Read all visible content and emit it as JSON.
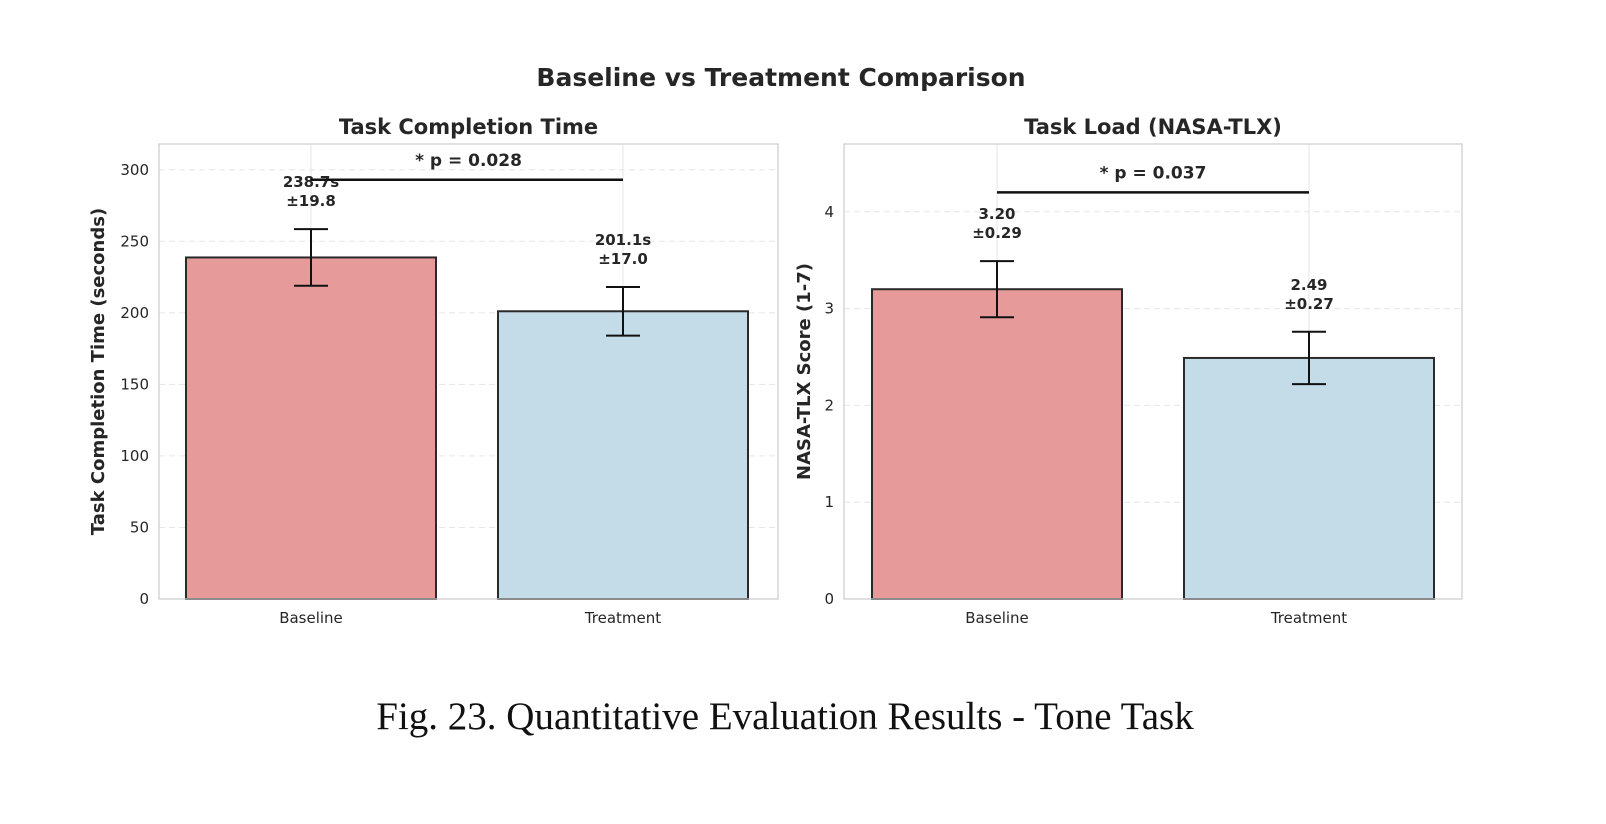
{
  "figure": {
    "suptitle": "Baseline vs Treatment Comparison",
    "caption": "Fig. 23.  Quantitative Evaluation Results - Tone Task"
  },
  "colors": {
    "baseline": "#e69a9a",
    "treatment": "#c3dce8",
    "edge": "#2a2a2a",
    "grid": "#e6e6e6",
    "axis": "#cccccc",
    "text": "#262626"
  },
  "chart_data": [
    {
      "type": "bar",
      "title": "Task Completion Time",
      "xlabel": "",
      "ylabel": "Task Completion Time (seconds)",
      "ylim": [
        0,
        318
      ],
      "yticks": [
        0,
        50,
        100,
        150,
        200,
        250,
        300
      ],
      "categories": [
        "Baseline",
        "Treatment"
      ],
      "values": [
        238.7,
        201.1
      ],
      "errors": [
        19.8,
        17.0
      ],
      "value_labels": [
        "238.7s\n±19.8",
        "201.1s\n±17.0"
      ],
      "significance": {
        "label": "* p = 0.028",
        "y": 293
      },
      "grid": true
    },
    {
      "type": "bar",
      "title": "Task Load (NASA-TLX)",
      "xlabel": "",
      "ylabel": "NASA-TLX Score (1-7)",
      "ylim": [
        0,
        4.7
      ],
      "yticks": [
        0,
        1,
        2,
        3,
        4
      ],
      "categories": [
        "Baseline",
        "Treatment"
      ],
      "values": [
        3.2,
        2.49
      ],
      "errors": [
        0.29,
        0.27
      ],
      "value_labels": [
        "3.20\n±0.29",
        "2.49\n±0.27"
      ],
      "significance": {
        "label": "* p = 0.037",
        "y": 4.2
      },
      "grid": true
    }
  ]
}
